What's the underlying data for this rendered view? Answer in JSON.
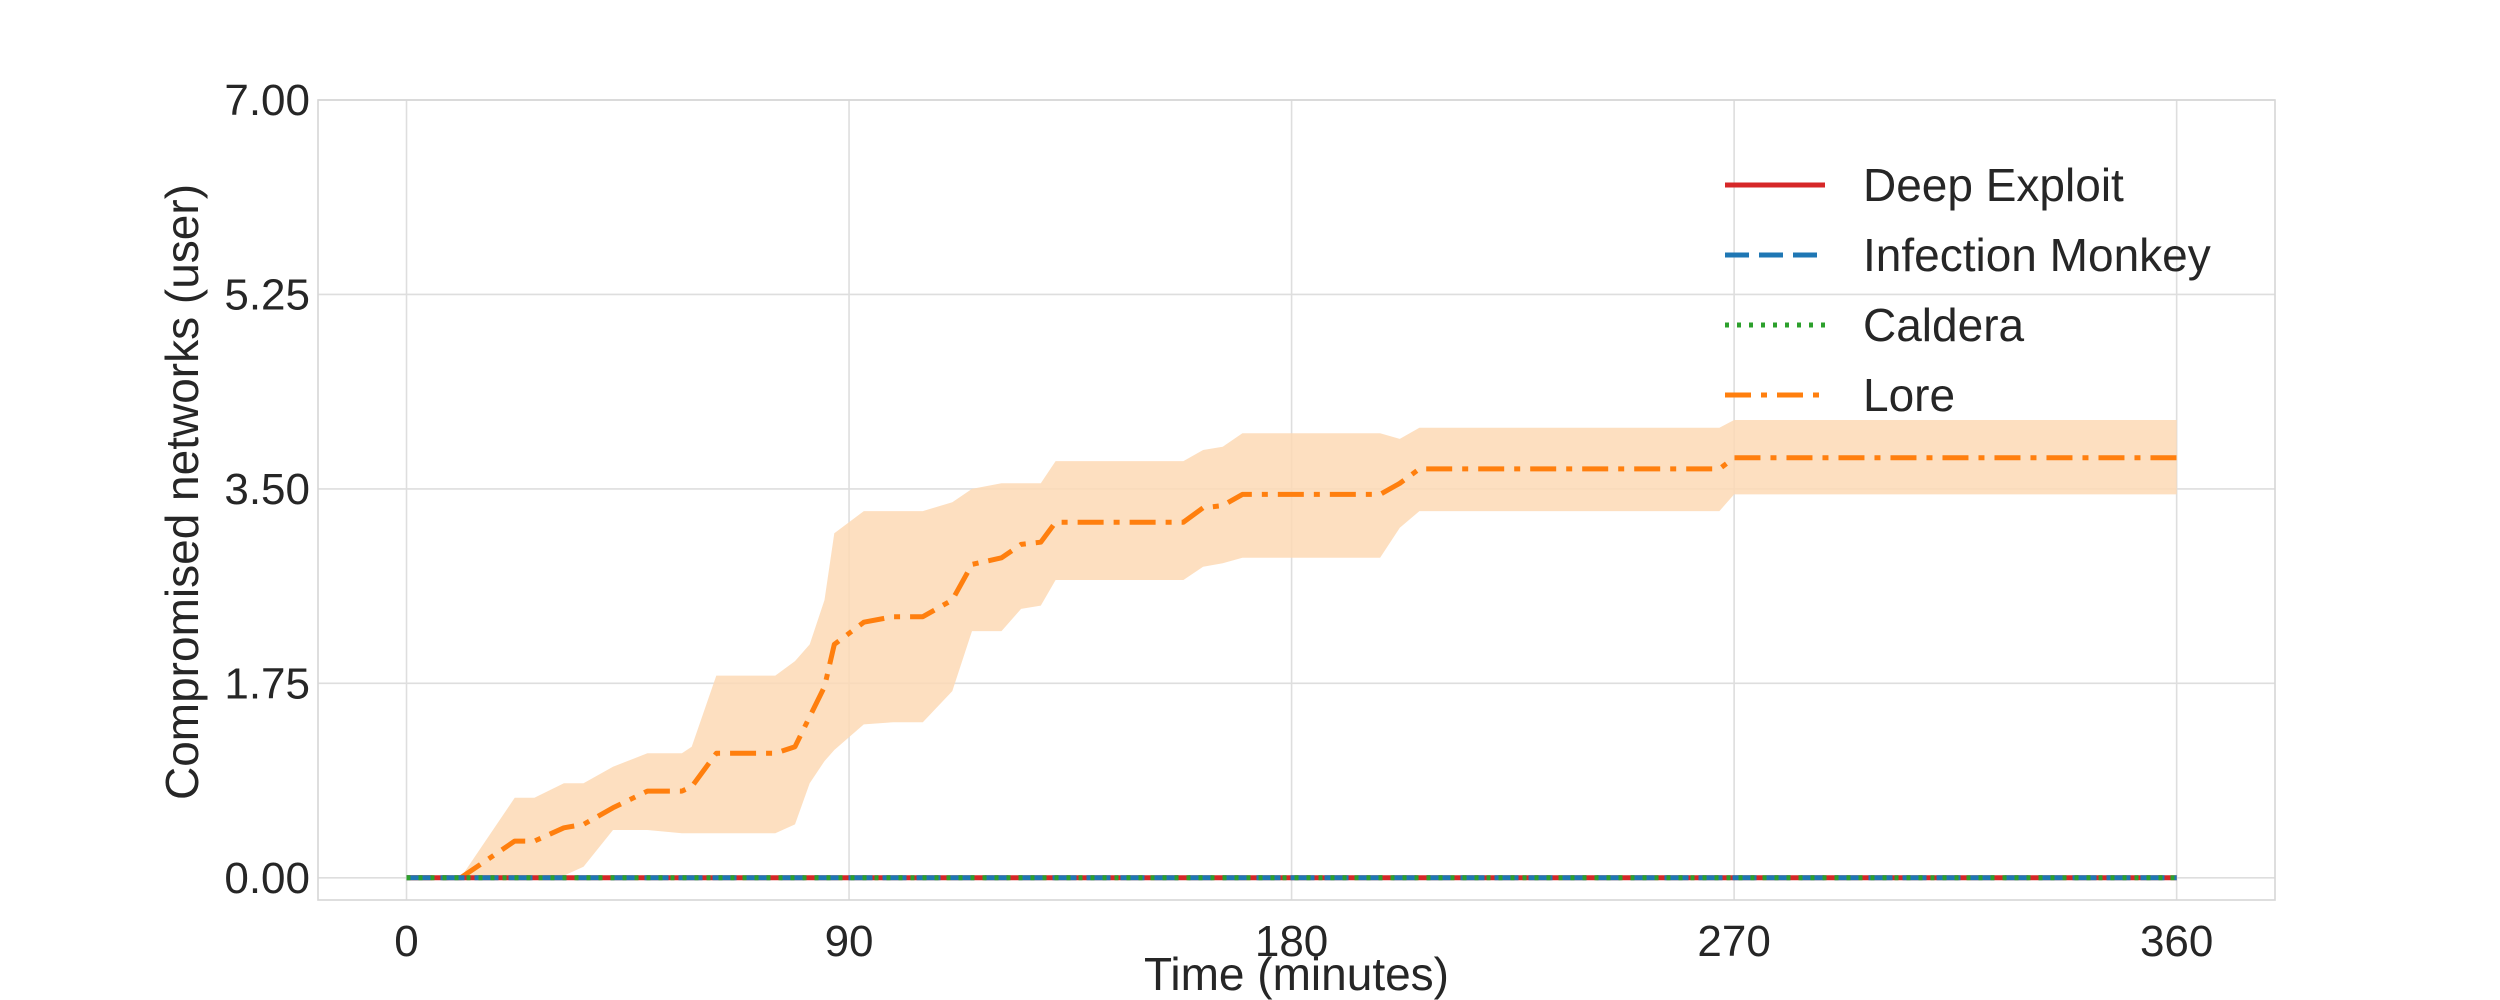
{
  "chart_data": {
    "type": "line",
    "xlabel": "Time (minutes)",
    "ylabel": "Compromised networks (user)",
    "xlim": [
      -18,
      380
    ],
    "ylim": [
      -0.2,
      7.0
    ],
    "xticks": [
      0,
      90,
      180,
      270,
      360
    ],
    "xtick_labels": [
      "0",
      "90",
      "180",
      "270",
      "360"
    ],
    "yticks": [
      0,
      1.75,
      3.5,
      5.25,
      7.0
    ],
    "ytick_labels": [
      "0.00",
      "1.75",
      "3.50",
      "5.25",
      "7.00"
    ],
    "grid": true,
    "legend_position": "top-right",
    "series": [
      {
        "name": "Deep Exploit",
        "color": "#d62728",
        "style": "solid",
        "x": [
          0,
          360
        ],
        "y": [
          0,
          0
        ]
      },
      {
        "name": "Infection Monkey",
        "color": "#1f77b4",
        "style": "dashed",
        "x": [
          0,
          360
        ],
        "y": [
          0,
          0
        ]
      },
      {
        "name": "Caldera",
        "color": "#2ca02c",
        "style": "dotted",
        "x": [
          0,
          360
        ],
        "y": [
          0,
          0
        ]
      },
      {
        "name": "Lore",
        "color": "#ff7f0e",
        "style": "dashdot",
        "x": [
          0,
          11,
          22,
          26,
          32,
          36,
          42,
          49,
          56,
          58,
          63,
          71,
          75,
          79,
          82,
          85,
          87,
          93,
          99,
          105,
          111,
          115,
          121,
          125,
          129,
          132,
          140,
          150,
          158,
          162,
          166,
          170,
          178,
          190,
          198,
          202,
          206,
          214,
          230,
          240,
          250,
          260,
          267,
          270,
          280,
          300,
          320,
          340,
          360
        ],
        "y": [
          0,
          0,
          0.33,
          0.33,
          0.45,
          0.48,
          0.63,
          0.78,
          0.78,
          0.82,
          1.12,
          1.12,
          1.12,
          1.18,
          1.45,
          1.72,
          2.1,
          2.3,
          2.35,
          2.35,
          2.5,
          2.82,
          2.88,
          3.0,
          3.02,
          3.2,
          3.2,
          3.2,
          3.2,
          3.33,
          3.35,
          3.45,
          3.45,
          3.45,
          3.45,
          3.55,
          3.68,
          3.68,
          3.68,
          3.68,
          3.68,
          3.68,
          3.68,
          3.78,
          3.78,
          3.78,
          3.78,
          3.78,
          3.78
        ],
        "band_upper": [
          0,
          0,
          0.72,
          0.72,
          0.85,
          0.85,
          1.0,
          1.12,
          1.12,
          1.18,
          1.82,
          1.82,
          1.82,
          1.95,
          2.1,
          2.5,
          3.1,
          3.3,
          3.3,
          3.3,
          3.38,
          3.5,
          3.55,
          3.55,
          3.55,
          3.75,
          3.75,
          3.75,
          3.75,
          3.85,
          3.88,
          4.0,
          4.0,
          4.0,
          4.0,
          3.95,
          4.05,
          4.05,
          4.05,
          4.05,
          4.05,
          4.05,
          4.05,
          4.12,
          4.12,
          4.12,
          4.12,
          4.12,
          4.12
        ],
        "band_lower": [
          0,
          0,
          0,
          0,
          0.02,
          0.1,
          0.43,
          0.43,
          0.4,
          0.4,
          0.4,
          0.4,
          0.4,
          0.48,
          0.85,
          1.05,
          1.15,
          1.38,
          1.4,
          1.4,
          1.68,
          2.22,
          2.22,
          2.42,
          2.45,
          2.68,
          2.68,
          2.68,
          2.68,
          2.8,
          2.83,
          2.88,
          2.88,
          2.88,
          2.88,
          3.15,
          3.3,
          3.3,
          3.3,
          3.3,
          3.3,
          3.3,
          3.3,
          3.45,
          3.45,
          3.45,
          3.45,
          3.45,
          3.45
        ],
        "band_color": "#fdd9b5"
      }
    ]
  }
}
